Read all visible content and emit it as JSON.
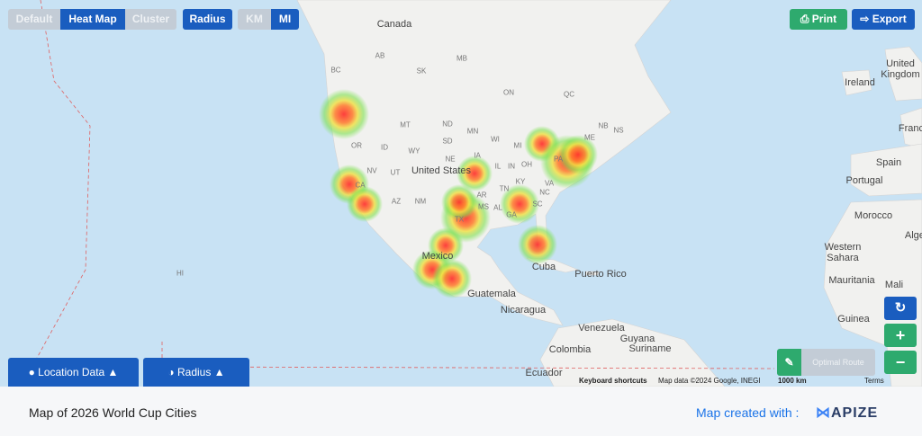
{
  "toolbar": {
    "view_modes": [
      "Default",
      "Heat Map",
      "Cluster"
    ],
    "radius": "Radius",
    "units": [
      "KM",
      "MI"
    ],
    "print": "Print",
    "export": "Export"
  },
  "map": {
    "labels": [
      "Canada",
      "BC",
      "AB",
      "SK",
      "MB",
      "ON",
      "QC",
      "NB",
      "NS",
      "ME",
      "OR",
      "ID",
      "MT",
      "ND",
      "SD",
      "WY",
      "NE",
      "MN",
      "WI",
      "MI",
      "IA",
      "IL",
      "IN",
      "OH",
      "PA",
      "NV",
      "UT",
      "CA",
      "AZ",
      "NM",
      "TX",
      "AR",
      "MS",
      "TN",
      "AL",
      "GA",
      "KY",
      "VA",
      "NC",
      "SC",
      "United States",
      "Mexico",
      "Cuba",
      "Puerto Rico",
      "Guatemala",
      "Nicaragua",
      "Venezuela",
      "Guyana",
      "Suriname",
      "Colombia",
      "Ecuador",
      "HI",
      "United Kingdom",
      "Ireland",
      "France",
      "Spain",
      "Portugal",
      "Morocco",
      "Algeria",
      "Western Sahara",
      "Mauritania",
      "Mali",
      "Guinea"
    ]
  },
  "map_controls": {
    "optimal_route": "Optimal Route"
  },
  "panels": {
    "location_data": "Location Data",
    "radius": "Radius"
  },
  "attribution": {
    "keyboard": "Keyboard shortcuts",
    "data": "Map data ©2024 Google, INEGI",
    "scale": "1000 km",
    "terms": "Terms"
  },
  "footer": {
    "title": "Map of 2026 World Cup Cities",
    "credit": "Map created with :",
    "brand": "APIZE"
  }
}
